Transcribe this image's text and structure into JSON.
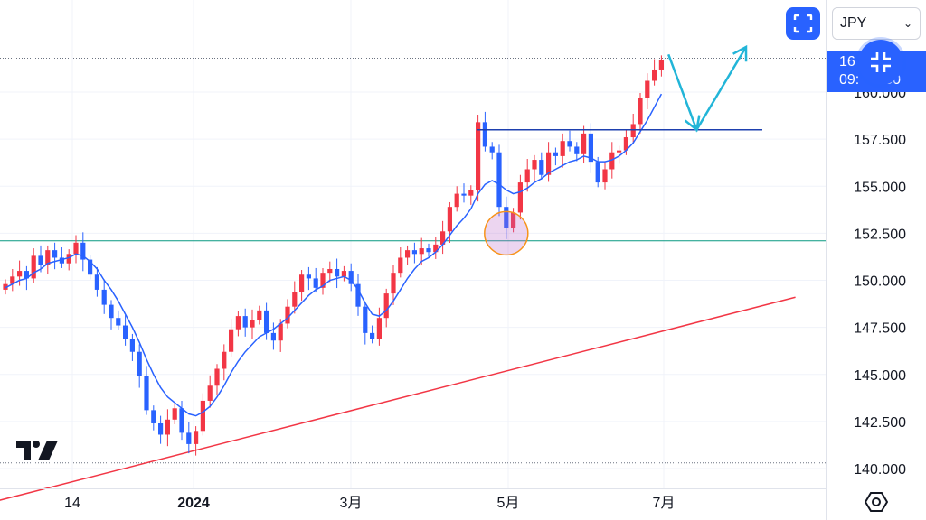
{
  "currency_selector": {
    "value": "JPY",
    "icon": "chevron-down-icon"
  },
  "price_label": {
    "line1": "16",
    "line2": "09:",
    "line1_tail": "4",
    "line2_tail": "50"
  },
  "icons": {
    "fullscreen": "fullscreen-icon",
    "collapse": "collapse-icon",
    "settings": "settings-icon",
    "logo": "tradingview-logo"
  },
  "colors": {
    "up": "#f23645",
    "down": "#2962ff",
    "ma": "#2962ff",
    "support": "#089981",
    "trend": "#f23645",
    "resistance": "#1e40af",
    "arrow": "#22b5d8"
  },
  "chart_data": {
    "type": "candlestick",
    "title": "",
    "xlabel": "",
    "ylabel": "",
    "ylim": [
      139.5,
      165.5
    ],
    "x_ticks": [
      "14",
      "2024",
      "3月",
      "5月",
      "7月"
    ],
    "y_ticks": [
      "140.000",
      "142.500",
      "145.000",
      "147.500",
      "150.000",
      "152.500",
      "155.000",
      "157.500",
      "160.000"
    ],
    "grid": true,
    "legend": "none",
    "close_series": [
      149.8,
      150.2,
      150.5,
      150.1,
      151.3,
      150.8,
      151.6,
      151.2,
      150.9,
      151.4,
      152.0,
      151.1,
      150.3,
      149.5,
      148.7,
      148.0,
      147.6,
      146.9,
      146.2,
      144.9,
      143.1,
      142.4,
      141.8,
      142.6,
      143.2,
      141.9,
      141.3,
      142.0,
      143.6,
      144.4,
      145.3,
      146.2,
      147.4,
      148.1,
      147.5,
      147.9,
      148.4,
      147.2,
      146.8,
      147.7,
      148.6,
      149.4,
      150.3,
      150.1,
      149.6,
      150.4,
      150.6,
      150.2,
      150.5,
      149.8,
      148.6,
      147.2,
      146.9,
      148.0,
      149.3,
      150.4,
      151.2,
      151.6,
      151.4,
      151.7,
      151.5,
      151.9,
      152.6,
      153.9,
      154.6,
      154.5,
      154.8,
      158.4,
      157.1,
      156.8,
      153.9,
      152.8,
      153.6,
      155.2,
      155.9,
      156.4,
      155.6,
      156.8,
      156.6,
      157.4,
      157.1,
      156.7,
      157.8,
      156.3,
      155.2,
      155.9,
      156.8,
      156.9,
      157.6,
      158.3,
      159.7,
      160.6,
      161.2,
      161.7
    ],
    "ma_series": [
      149.6,
      149.8,
      150.0,
      150.1,
      150.4,
      150.6,
      150.9,
      151.0,
      151.1,
      151.2,
      151.4,
      151.3,
      151.0,
      150.6,
      150.0,
      149.5,
      148.9,
      148.2,
      147.5,
      146.7,
      145.8,
      145.0,
      144.3,
      143.8,
      143.5,
      143.2,
      142.9,
      142.8,
      143.0,
      143.3,
      143.8,
      144.4,
      145.1,
      145.7,
      146.2,
      146.6,
      147.0,
      147.2,
      147.4,
      147.7,
      148.0,
      148.4,
      148.8,
      149.2,
      149.5,
      149.7,
      150.0,
      150.1,
      150.2,
      150.0,
      149.5,
      148.8,
      148.2,
      148.1,
      148.4,
      148.9,
      149.5,
      150.1,
      150.6,
      151.0,
      151.2,
      151.5,
      151.9,
      152.4,
      152.9,
      153.3,
      153.8,
      154.6,
      155.1,
      155.3,
      155.1,
      154.8,
      154.6,
      154.7,
      154.9,
      155.2,
      155.4,
      155.7,
      155.9,
      156.1,
      156.3,
      156.4,
      156.6,
      156.5,
      156.3,
      156.3,
      156.4,
      156.6,
      156.9,
      157.3,
      157.9,
      158.5,
      159.2,
      159.9
    ],
    "annotations": {
      "support_level": 152.1,
      "resistance_level": 158.0,
      "current_level": 161.8,
      "low_level": 140.3,
      "trendline": [
        [
          -2,
          138.2
        ],
        [
          112,
          149.1
        ]
      ],
      "forecast_arrow": [
        [
          94,
          162.0
        ],
        [
          98,
          158.0
        ],
        [
          105,
          162.4
        ]
      ],
      "highlight_circle": {
        "index": 71,
        "price": 152.5
      }
    }
  }
}
